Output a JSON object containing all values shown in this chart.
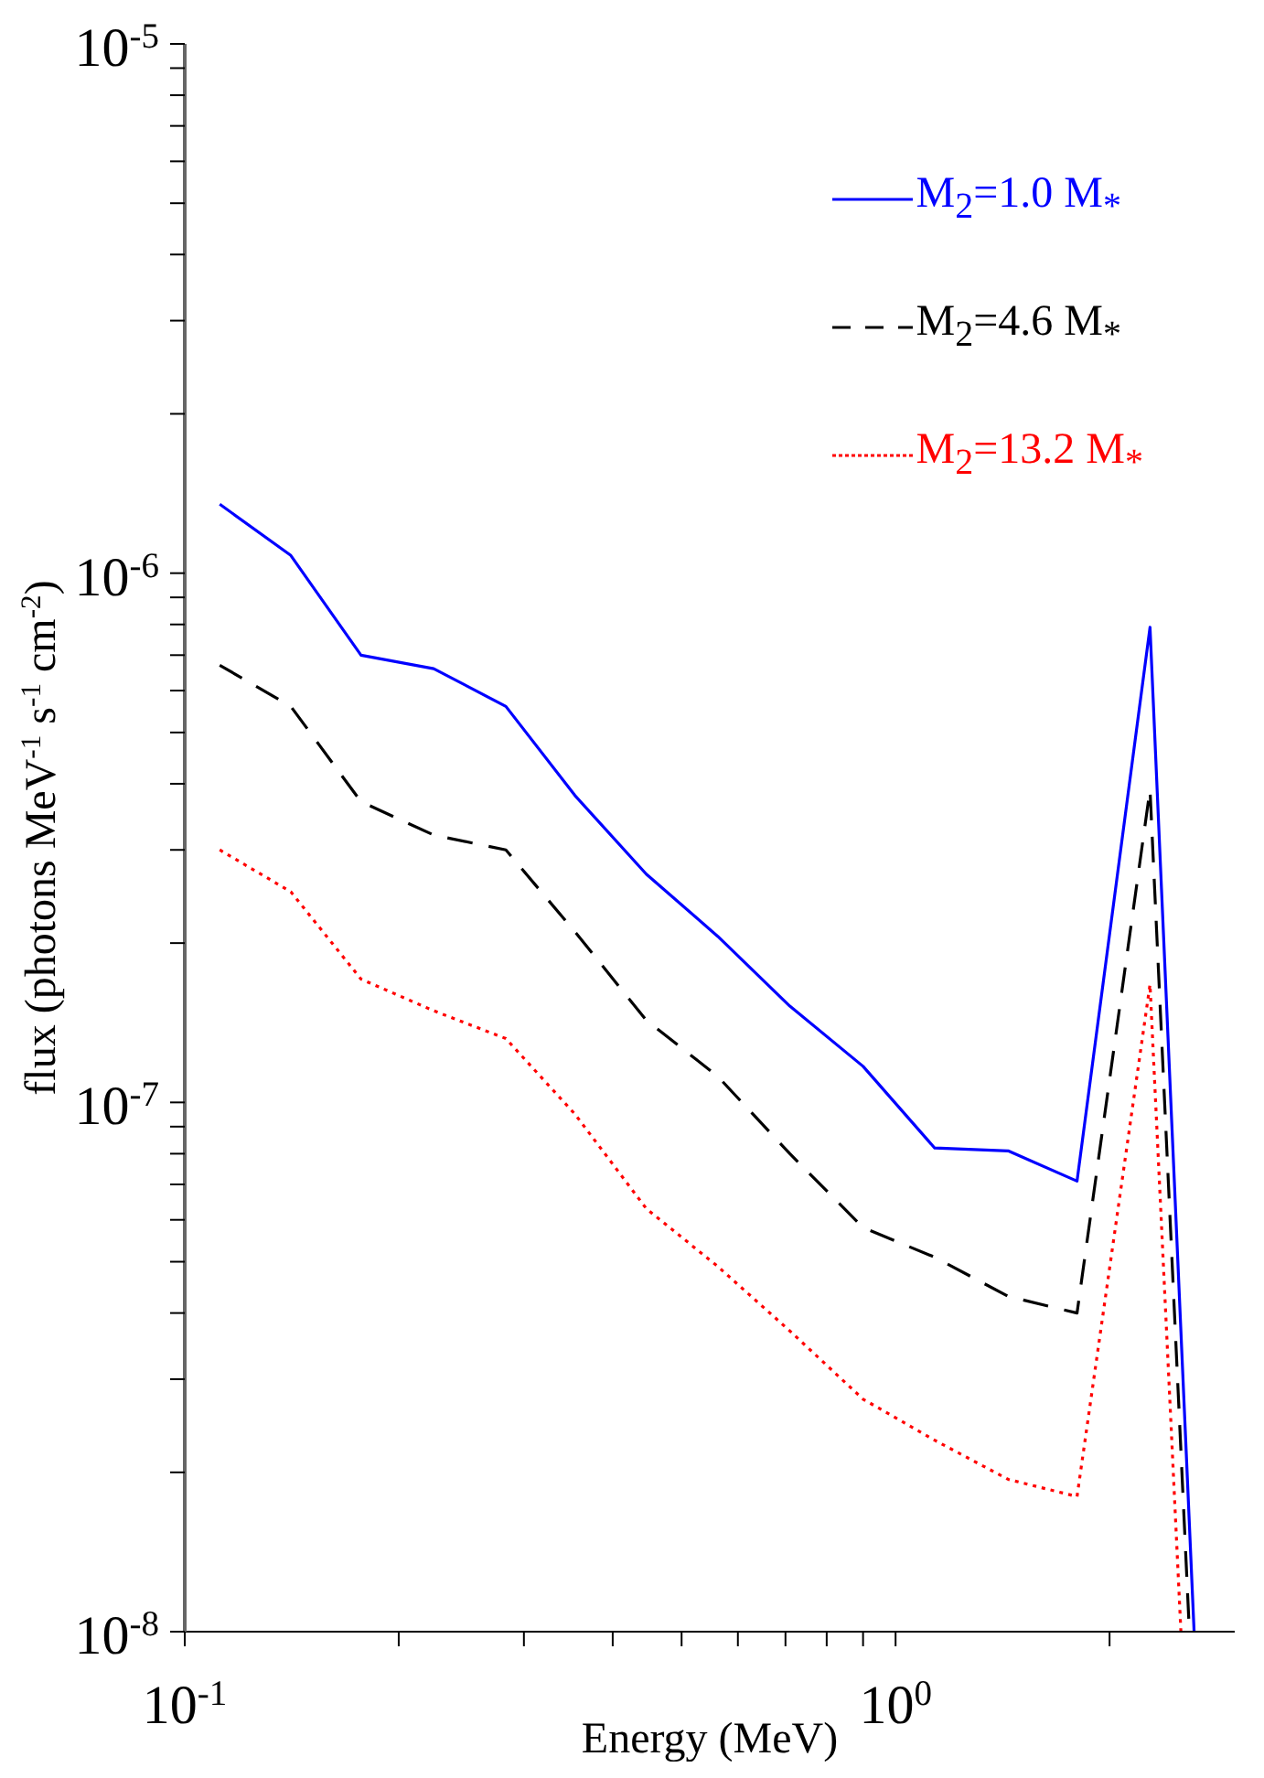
{
  "chart_data": {
    "type": "line",
    "xlabel": "Energy (MeV)",
    "ylabel": "flux (photons MeV$^{-1}$ s$^{-1}$ cm$^{-2}$)",
    "log": "xy",
    "legend": "top right",
    "marker": "none",
    "xlim": [
      0.1,
      3
    ],
    "xticks": [
      {
        "value": 0.1,
        "label": "10$^{-1}$"
      },
      {
        "value": 0.2,
        "label": null
      },
      {
        "value": 0.3,
        "label": null
      },
      {
        "value": 0.4,
        "label": null
      },
      {
        "value": 0.5,
        "label": null
      },
      {
        "value": 0.6,
        "label": null
      },
      {
        "value": 0.7,
        "label": null
      },
      {
        "value": 0.8,
        "label": null
      },
      {
        "value": 0.9,
        "label": null
      },
      {
        "value": 1,
        "label": "10$^{0}$"
      },
      {
        "value": 2,
        "label": null
      }
    ],
    "ylim": [
      1e-08,
      1e-05
    ],
    "yticks": [
      {
        "value": 1e-08,
        "label": "10$^{-8}$"
      },
      {
        "value": 2e-08,
        "label": null
      },
      {
        "value": 3e-08,
        "label": null
      },
      {
        "value": 4e-08,
        "label": null
      },
      {
        "value": 5e-08,
        "label": null
      },
      {
        "value": 6e-08,
        "label": null
      },
      {
        "value": 7e-08,
        "label": null
      },
      {
        "value": 8e-08,
        "label": null
      },
      {
        "value": 9e-08,
        "label": null
      },
      {
        "value": 1e-07,
        "label": "10$^{-7}$"
      },
      {
        "value": 2e-07,
        "label": null
      },
      {
        "value": 3e-07,
        "label": null
      },
      {
        "value": 4e-07,
        "label": null
      },
      {
        "value": 5e-07,
        "label": null
      },
      {
        "value": 6e-07,
        "label": null
      },
      {
        "value": 7e-07,
        "label": null
      },
      {
        "value": 8e-07,
        "label": null
      },
      {
        "value": 9e-07,
        "label": null
      },
      {
        "value": 1e-06,
        "label": "10$^{-6}$"
      },
      {
        "value": 2e-06,
        "label": null
      },
      {
        "value": 3e-06,
        "label": null
      },
      {
        "value": 4e-06,
        "label": null
      },
      {
        "value": 5e-06,
        "label": null
      },
      {
        "value": 6e-06,
        "label": null
      },
      {
        "value": 7e-06,
        "label": null
      },
      {
        "value": 8e-06,
        "label": null
      },
      {
        "value": 9e-06,
        "label": null
      },
      {
        "value": 1e-05,
        "label": "10$^{-5}$"
      }
    ],
    "series": [
      {
        "name": "M$_{2}$=1.0 M$_{*}$",
        "color": "#0000ff",
        "line_style": "solid",
        "x": [
          0.112,
          0.141,
          0.177,
          0.224,
          0.283,
          0.354,
          0.446,
          0.562,
          0.71,
          0.9,
          1.135,
          1.44,
          1.8,
          2.28,
          2.63
        ],
        "values": [
          1.35e-06,
          1.08e-06,
          7e-07,
          6.6e-07,
          5.6e-07,
          3.8e-07,
          2.7e-07,
          2.06e-07,
          1.52e-07,
          1.17e-07,
          8.2e-08,
          8.1e-08,
          7.1e-08,
          7.9e-07,
          1e-08
        ]
      },
      {
        "name": "M$_{2}$=4.6 M$_{*}$",
        "color": "#000000",
        "line_style": "dashed",
        "x": [
          0.112,
          0.141,
          0.177,
          0.224,
          0.283,
          0.354,
          0.446,
          0.562,
          0.71,
          0.9,
          1.135,
          1.44,
          1.8,
          2.28,
          2.59
        ],
        "values": [
          6.7e-07,
          5.6e-07,
          3.7e-07,
          3.2e-07,
          3e-07,
          2.1e-07,
          1.43e-07,
          1.12e-07,
          8e-08,
          5.8e-08,
          5.1e-08,
          4.3e-08,
          4e-08,
          3.9e-07,
          1e-08
        ]
      },
      {
        "name": "M$_{2}$=13.2 M$_{*}$",
        "color": "#ff0000",
        "line_style": "dotted",
        "x": [
          0.112,
          0.141,
          0.177,
          0.224,
          0.283,
          0.354,
          0.446,
          0.562,
          0.71,
          0.9,
          1.135,
          1.44,
          1.8,
          2.28,
          2.52
        ],
        "values": [
          3e-07,
          2.5e-07,
          1.71e-07,
          1.49e-07,
          1.32e-07,
          9.5e-08,
          6.3e-08,
          4.9e-08,
          3.7e-08,
          2.75e-08,
          2.3e-08,
          1.94e-08,
          1.8e-08,
          1.67e-07,
          1e-08
        ]
      }
    ]
  }
}
